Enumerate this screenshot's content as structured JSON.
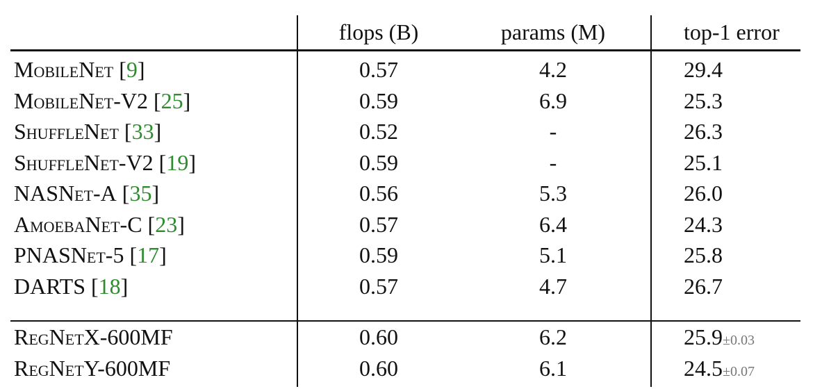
{
  "table": {
    "header": [
      "flops (B)",
      "params (M)",
      "top-1 error"
    ],
    "rows": [
      {
        "name": "MobileNet",
        "cite": "9",
        "flops": "0.57",
        "params": "4.2",
        "error": "29.4"
      },
      {
        "name": "MobileNet-V2",
        "cite": "25",
        "flops": "0.59",
        "params": "6.9",
        "error": "25.3"
      },
      {
        "name": "ShuffleNet",
        "cite": "33",
        "flops": "0.52",
        "params": "-",
        "error": "26.3"
      },
      {
        "name": "ShuffleNet-V2",
        "cite": "19",
        "flops": "0.59",
        "params": "-",
        "error": "25.1"
      },
      {
        "name": "NASNet-A",
        "cite": "35",
        "flops": "0.56",
        "params": "5.3",
        "error": "26.0"
      },
      {
        "name": "AmoebaNet-C",
        "cite": "23",
        "flops": "0.57",
        "params": "6.4",
        "error": "24.3"
      },
      {
        "name": "PNASNet-5",
        "cite": "17",
        "flops": "0.59",
        "params": "5.1",
        "error": "25.8"
      },
      {
        "name": "DARTS",
        "cite": "18",
        "flops": "0.57",
        "params": "4.7",
        "error": "26.7"
      },
      {
        "name": "RegNetX-600MF",
        "flops": "0.60",
        "params": "6.2",
        "error": "25.9",
        "std": "±0.03"
      },
      {
        "name": "RegNetY-600MF",
        "flops": "0.60",
        "params": "6.1",
        "error": "24.5",
        "std": "±0.07"
      }
    ]
  }
}
